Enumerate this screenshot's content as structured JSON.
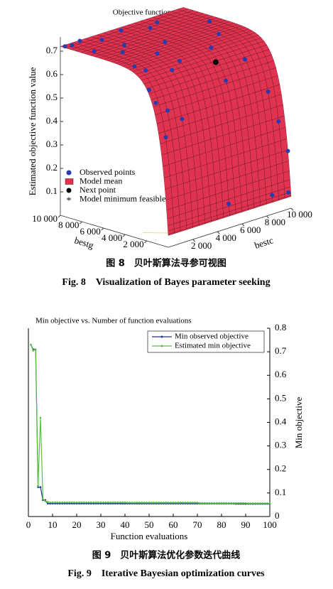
{
  "chart_data": [
    {
      "type": "surface3d",
      "title": "Objective function model",
      "zlabel": "Estimated objective function value",
      "xlabel": "bestc",
      "ylabel": "bestg",
      "xlim": [
        0,
        10000
      ],
      "ylim": [
        0,
        10000
      ],
      "zlim": [
        0,
        0.8
      ],
      "xticks": [
        {
          "value": 2000,
          "label": "2 000"
        },
        {
          "value": 4000,
          "label": "4 000"
        },
        {
          "value": 6000,
          "label": "6 000"
        },
        {
          "value": 8000,
          "label": "8 000"
        },
        {
          "value": 10000,
          "label": "10 000"
        }
      ],
      "yticks": [
        {
          "value": 2000,
          "label": "2 000"
        },
        {
          "value": 4000,
          "label": "4 000"
        },
        {
          "value": 6000,
          "label": "6 000"
        },
        {
          "value": 8000,
          "label": "8 000"
        },
        {
          "value": 10000,
          "label": "10 000"
        }
      ],
      "zticks": [
        0.1,
        0.2,
        0.3,
        0.4,
        0.5,
        0.6,
        0.7
      ],
      "series": [
        {
          "name": "Observed points",
          "color": "#2a3bb0",
          "x": [
            200,
            600,
            1500,
            2500,
            1000,
            3000,
            4500,
            5000,
            2000,
            6000,
            7000,
            3500,
            1200,
            800,
            2500,
            4000,
            200,
            300,
            1000,
            500,
            2000,
            6000,
            8000,
            9000,
            9500,
            10000,
            5000,
            8500,
            9800,
            7000,
            8500,
            9500
          ],
          "y": [
            9800,
            9600,
            9900,
            9000,
            8000,
            7500,
            9500,
            6000,
            6500,
            8500,
            9000,
            5000,
            4500,
            3000,
            2500,
            3500,
            2000,
            1500,
            1200,
            800,
            1000,
            1500,
            2000,
            1000,
            600,
            300,
            100,
            50,
            30,
            4000,
            5000,
            7000
          ],
          "z": [
            0.72,
            0.72,
            0.72,
            0.72,
            0.71,
            0.71,
            0.72,
            0.71,
            0.71,
            0.72,
            0.72,
            0.7,
            0.69,
            0.7,
            0.68,
            0.68,
            0.64,
            0.59,
            0.55,
            0.45,
            0.5,
            0.59,
            0.64,
            0.5,
            0.37,
            0.24,
            0.1,
            0.08,
            0.07,
            0.68,
            0.7,
            0.71
          ]
        },
        {
          "name": "Model mean",
          "color": "#e0334f"
        },
        {
          "name": "Next point",
          "color": "#000000",
          "x": [
            6500
          ],
          "y": [
            3000
          ],
          "z": [
            0.64
          ]
        },
        {
          "name": "Model minimum feasible",
          "color": "#e03030"
        }
      ]
    },
    {
      "type": "line",
      "title": "Min objective vs. Number of function evaluations",
      "xlabel": "Function evaluations",
      "ylabel": "Min objective",
      "xlim": [
        0,
        100
      ],
      "ylim": [
        0,
        0.8
      ],
      "xticks": [
        0,
        10,
        20,
        30,
        40,
        50,
        60,
        70,
        80,
        90,
        100
      ],
      "yticks": [
        0,
        0.1,
        0.2,
        0.3,
        0.4,
        0.5,
        0.6,
        0.7,
        0.8
      ],
      "x": [
        1,
        2,
        3,
        4,
        5,
        6,
        7,
        8,
        9,
        10,
        11,
        12,
        13,
        14,
        15,
        16,
        17,
        18,
        19,
        20,
        21,
        22,
        23,
        24,
        25,
        26,
        27,
        28,
        29,
        30,
        31,
        32,
        33,
        34,
        35,
        36,
        37,
        38,
        39,
        40,
        41,
        42,
        43,
        44,
        45,
        46,
        47,
        48,
        49,
        50,
        51,
        52,
        53,
        54,
        55,
        56,
        57,
        58,
        59,
        60,
        61,
        62,
        63,
        64,
        65,
        66,
        67,
        68,
        69,
        70,
        71,
        72,
        73,
        74,
        75,
        76,
        77,
        78,
        79,
        80,
        81,
        82,
        83,
        84,
        85,
        86,
        87,
        88,
        89,
        90,
        91,
        92,
        93,
        94,
        95,
        96,
        97,
        98,
        99,
        100
      ],
      "series": [
        {
          "name": "Min observed objective",
          "color": "#23339a",
          "values": [
            0.73,
            0.71,
            0.71,
            0.125,
            0.125,
            0.07,
            0.07,
            0.055,
            0.055,
            0.055,
            0.055,
            0.055,
            0.055,
            0.055,
            0.055,
            0.055,
            0.055,
            0.055,
            0.055,
            0.055,
            0.055,
            0.055,
            0.055,
            0.055,
            0.055,
            0.055,
            0.055,
            0.055,
            0.055,
            0.055,
            0.055,
            0.055,
            0.055,
            0.055,
            0.055,
            0.055,
            0.055,
            0.055,
            0.055,
            0.055,
            0.055,
            0.055,
            0.055,
            0.055,
            0.055,
            0.055,
            0.055,
            0.055,
            0.055,
            0.055,
            0.055,
            0.055,
            0.055,
            0.055,
            0.055,
            0.055,
            0.055,
            0.055,
            0.055,
            0.055,
            0.055,
            0.055,
            0.055,
            0.055,
            0.055,
            0.055,
            0.055,
            0.055,
            0.055,
            0.055,
            0.055,
            0.055,
            0.055,
            0.055,
            0.055,
            0.055,
            0.055,
            0.055,
            0.055,
            0.055,
            0.055,
            0.055,
            0.055,
            0.055,
            0.055,
            0.054,
            0.054,
            0.054,
            0.054,
            0.054,
            0.054,
            0.054,
            0.054,
            0.054,
            0.054,
            0.054,
            0.054,
            0.054,
            0.054,
            0.054
          ]
        },
        {
          "name": "Estimated min objective",
          "color": "#55c23f",
          "values": [
            0.73,
            0.705,
            0.71,
            0.13,
            0.42,
            0.075,
            0.065,
            0.062,
            0.06,
            0.06,
            0.06,
            0.06,
            0.06,
            0.06,
            0.06,
            0.06,
            0.06,
            0.06,
            0.06,
            0.06,
            0.06,
            0.06,
            0.06,
            0.06,
            0.06,
            0.06,
            0.06,
            0.06,
            0.06,
            0.06,
            0.06,
            0.06,
            0.06,
            0.06,
            0.06,
            0.06,
            0.06,
            0.06,
            0.06,
            0.06,
            0.059,
            0.059,
            0.059,
            0.059,
            0.059,
            0.059,
            0.059,
            0.059,
            0.059,
            0.059,
            0.059,
            0.059,
            0.059,
            0.059,
            0.059,
            0.059,
            0.059,
            0.059,
            0.059,
            0.059,
            0.059,
            0.059,
            0.059,
            0.059,
            0.059,
            0.059,
            0.059,
            0.059,
            0.059,
            0.059,
            0.057,
            0.057,
            0.057,
            0.057,
            0.057,
            0.057,
            0.057,
            0.057,
            0.057,
            0.057,
            0.057,
            0.057,
            0.057,
            0.057,
            0.057,
            0.057,
            0.057,
            0.057,
            0.057,
            0.057,
            0.056,
            0.056,
            0.056,
            0.056,
            0.056,
            0.056,
            0.056,
            0.056,
            0.056,
            0.056
          ]
        }
      ]
    }
  ],
  "captions": [
    {
      "cn": "图 8　贝叶斯算法寻参可视图",
      "en": "Fig. 8　Visualization of Bayes parameter seeking"
    },
    {
      "cn": "图 9　贝叶斯算法优化参数迭代曲线",
      "en": "Fig. 9　Iterative Bayesian optimization curves"
    }
  ]
}
